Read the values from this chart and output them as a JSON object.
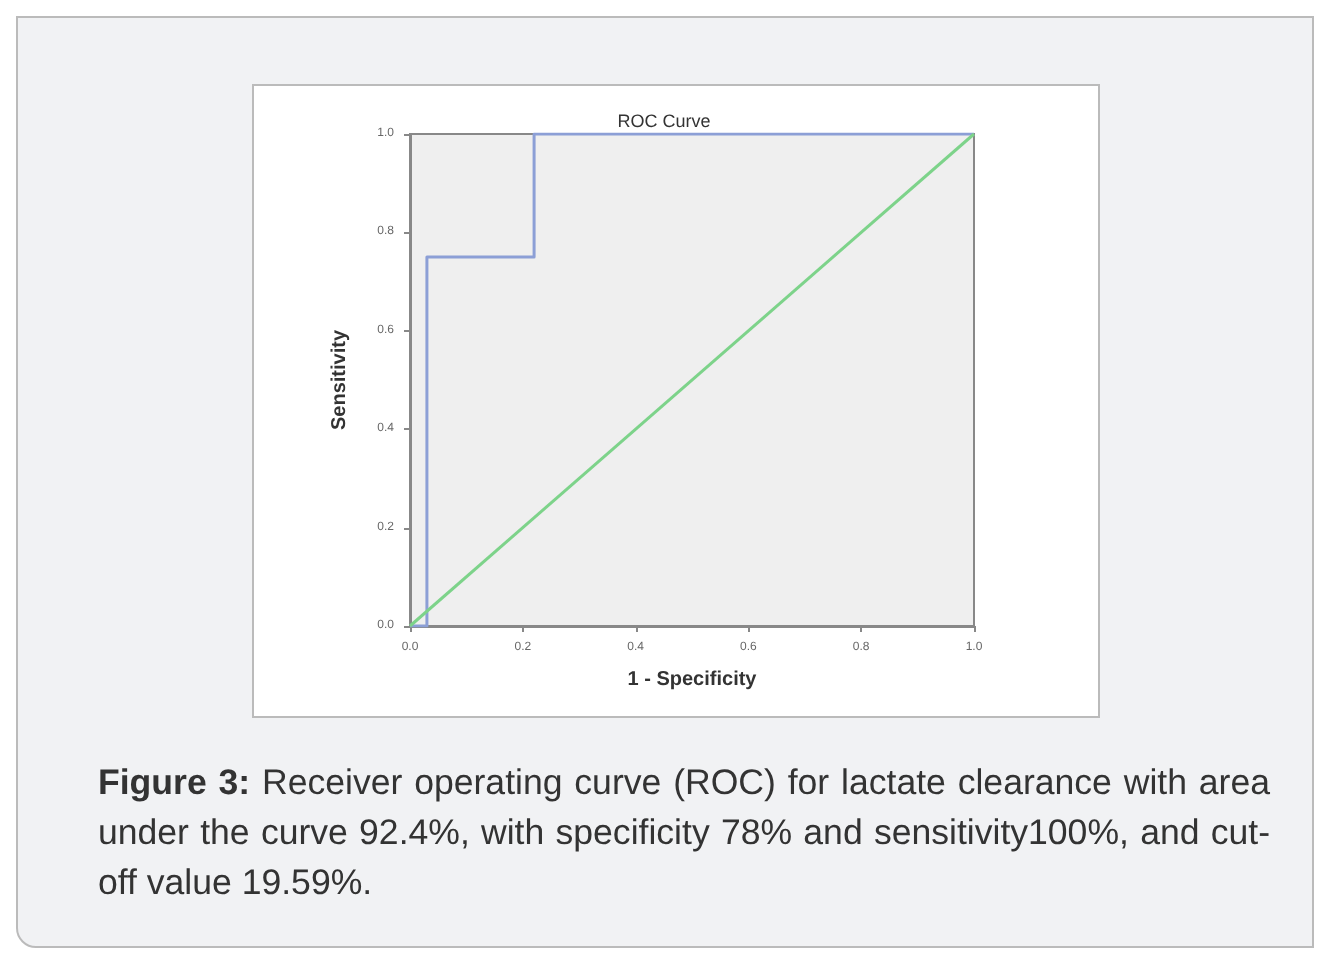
{
  "chart_data": {
    "type": "line",
    "title": "ROC Curve",
    "xlabel": "1 - Specificity",
    "ylabel": "Sensitivity",
    "series": [
      {
        "color": "#8c9fd6",
        "x": [
          0,
          0.03,
          0.03,
          0.22,
          0.22,
          1
        ],
        "values": [
          0,
          0,
          0.75,
          0.75,
          1,
          1
        ]
      },
      {
        "color": "#7dd38a",
        "x": [
          0,
          1
        ],
        "values": [
          0,
          1
        ]
      }
    ],
    "xlim": [
      0,
      1
    ],
    "ylim": [
      0,
      1
    ],
    "xticks": [
      {
        "value": 0,
        "label": "0.0"
      },
      {
        "value": 0.2,
        "label": "0.2"
      },
      {
        "value": 0.4,
        "label": "0.4"
      },
      {
        "value": 0.6,
        "label": "0.6"
      },
      {
        "value": 0.8,
        "label": "0.8"
      },
      {
        "value": 1,
        "label": "1.0"
      }
    ],
    "yticks": [
      {
        "value": 0,
        "label": "0.0"
      },
      {
        "value": 0.2,
        "label": "0.2"
      },
      {
        "value": 0.4,
        "label": "0.4"
      },
      {
        "value": 0.6,
        "label": "0.6"
      },
      {
        "value": 0.8,
        "label": "0.8"
      },
      {
        "value": 1,
        "label": "1.0"
      }
    ],
    "grid": false,
    "marker": "none",
    "line_style": "solid",
    "annotations": [
      "Figure 3: Receiver operating curve (ROC) for lactate clearance with area under the curve 92.4%, with specificity 78% and sensitivity100%, and cut-off value 19.59%."
    ]
  }
}
